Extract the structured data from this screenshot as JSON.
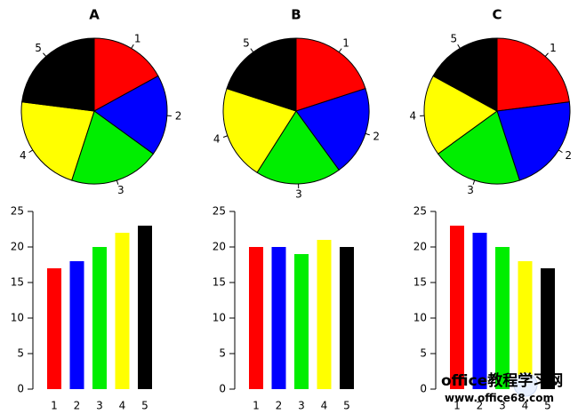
{
  "colors": [
    "#ff0000",
    "#0000ff",
    "#00ee00",
    "#ffff00",
    "#000000"
  ],
  "chart_data": [
    {
      "type": "pie",
      "title": "A",
      "categories": [
        "1",
        "2",
        "3",
        "4",
        "5"
      ],
      "values": [
        17,
        18,
        20,
        22,
        23
      ]
    },
    {
      "type": "pie",
      "title": "B",
      "categories": [
        "1",
        "2",
        "3",
        "4",
        "5"
      ],
      "values": [
        20,
        20,
        19,
        21,
        20
      ]
    },
    {
      "type": "pie",
      "title": "C",
      "categories": [
        "1",
        "2",
        "3",
        "4",
        "5"
      ],
      "values": [
        23,
        22,
        20,
        18,
        17
      ]
    },
    {
      "type": "bar",
      "categories": [
        "1",
        "2",
        "3",
        "4",
        "5"
      ],
      "values": [
        17,
        18,
        20,
        22,
        23
      ],
      "ylim": [
        0,
        25
      ],
      "yticks": [
        "0",
        "5",
        "10",
        "15",
        "20",
        "25"
      ],
      "xlabel": "",
      "ylabel": ""
    },
    {
      "type": "bar",
      "categories": [
        "1",
        "2",
        "3",
        "4",
        "5"
      ],
      "values": [
        20,
        20,
        19,
        21,
        20
      ],
      "ylim": [
        0,
        25
      ],
      "yticks": [
        "0",
        "5",
        "10",
        "15",
        "20",
        "25"
      ],
      "xlabel": "",
      "ylabel": ""
    },
    {
      "type": "bar",
      "categories": [
        "1",
        "2",
        "3",
        "4",
        "5"
      ],
      "values": [
        23,
        22,
        20,
        18,
        17
      ],
      "ylim": [
        0,
        25
      ],
      "yticks": [
        "0",
        "5",
        "10",
        "15",
        "20",
        "25"
      ],
      "xlabel": "",
      "ylabel": ""
    }
  ],
  "watermark": {
    "brand": "office教程学习网",
    "url": "www.office68.com",
    "colors": [
      "#ff3300",
      "#2255cc"
    ]
  }
}
